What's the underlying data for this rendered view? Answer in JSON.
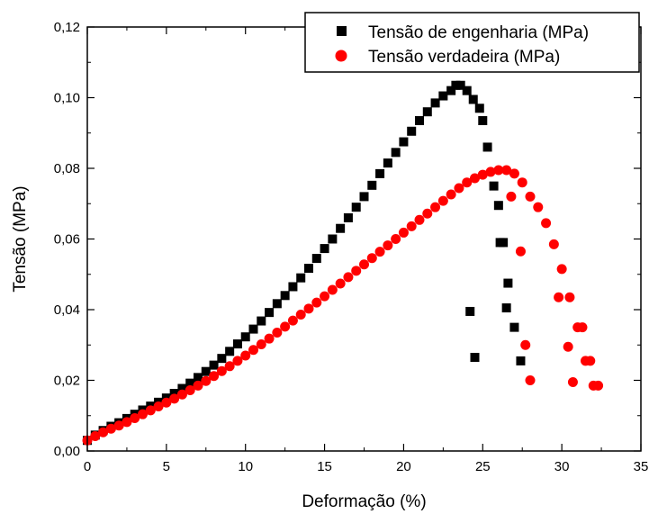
{
  "chart_data": {
    "type": "scatter",
    "xlabel": "Deformação (%)",
    "ylabel": "Tensão (MPa)",
    "xlim": [
      0,
      35
    ],
    "ylim": [
      0,
      0.12
    ],
    "x_ticks": [
      0,
      5,
      10,
      15,
      20,
      25,
      30,
      35
    ],
    "y_ticks": [
      0.0,
      0.02,
      0.04,
      0.06,
      0.08,
      0.1,
      0.12
    ],
    "x_tick_labels": [
      "0",
      "5",
      "10",
      "15",
      "20",
      "25",
      "30",
      "35"
    ],
    "y_tick_labels": [
      "0,00",
      "0,02",
      "0,04",
      "0,06",
      "0,08",
      "0,10",
      "0,12"
    ],
    "grid": false,
    "legend_position": "top-right",
    "series": [
      {
        "name": "Tensão de engenharia (MPa)",
        "marker": "square",
        "color": "#000000",
        "x": [
          0.0,
          0.5,
          1.0,
          1.5,
          2.0,
          2.5,
          3.0,
          3.5,
          4.0,
          4.5,
          5.0,
          5.5,
          6.0,
          6.5,
          7.0,
          7.5,
          8.0,
          8.5,
          9.0,
          9.5,
          10.0,
          10.5,
          11.0,
          11.5,
          12.0,
          12.5,
          13.0,
          13.5,
          14.0,
          14.5,
          15.0,
          15.5,
          16.0,
          16.5,
          17.0,
          17.5,
          18.0,
          18.5,
          19.0,
          19.5,
          20.0,
          20.5,
          21.0,
          21.5,
          22.0,
          22.5,
          23.0,
          23.3,
          23.6,
          24.0,
          24.4,
          24.8,
          25.0,
          25.3,
          25.7,
          26.0,
          26.3,
          26.6,
          27.0,
          27.4,
          26.5,
          26.1,
          24.5,
          24.2
        ],
        "y": [
          0.003,
          0.0045,
          0.0058,
          0.007,
          0.008,
          0.0092,
          0.0104,
          0.0116,
          0.0127,
          0.0138,
          0.015,
          0.0163,
          0.0177,
          0.0192,
          0.0208,
          0.0225,
          0.0243,
          0.0262,
          0.0282,
          0.0303,
          0.0323,
          0.0345,
          0.0368,
          0.0392,
          0.0417,
          0.044,
          0.0465,
          0.049,
          0.0517,
          0.0545,
          0.0573,
          0.06,
          0.063,
          0.066,
          0.069,
          0.072,
          0.0752,
          0.0785,
          0.0815,
          0.0845,
          0.0875,
          0.0905,
          0.0935,
          0.096,
          0.0985,
          0.1005,
          0.102,
          0.1035,
          0.1035,
          0.102,
          0.0995,
          0.097,
          0.0935,
          0.086,
          0.075,
          0.0695,
          0.059,
          0.0475,
          0.035,
          0.0255,
          0.0405,
          0.059,
          0.0265,
          0.0395
        ]
      },
      {
        "name": "Tensão verdadeira (MPa)",
        "marker": "circle",
        "color": "#ff0000",
        "x": [
          0.0,
          0.5,
          1.0,
          1.5,
          2.0,
          2.5,
          3.0,
          3.5,
          4.0,
          4.5,
          5.0,
          5.5,
          6.0,
          6.5,
          7.0,
          7.5,
          8.0,
          8.5,
          9.0,
          9.5,
          10.0,
          10.5,
          11.0,
          11.5,
          12.0,
          12.5,
          13.0,
          13.5,
          14.0,
          14.5,
          15.0,
          15.5,
          16.0,
          16.5,
          17.0,
          17.5,
          18.0,
          18.5,
          19.0,
          19.5,
          20.0,
          20.5,
          21.0,
          21.5,
          22.0,
          22.5,
          23.0,
          23.5,
          24.0,
          24.5,
          25.0,
          25.5,
          26.0,
          26.5,
          27.0,
          27.5,
          28.0,
          28.5,
          29.0,
          29.5,
          30.0,
          30.5,
          31.0,
          31.5,
          32.0,
          29.8,
          30.4,
          31.3,
          31.8,
          32.3,
          27.7,
          28.0,
          30.7,
          27.4,
          26.8
        ],
        "y": [
          0.003,
          0.0042,
          0.0053,
          0.0063,
          0.0072,
          0.0082,
          0.0093,
          0.0104,
          0.0115,
          0.0126,
          0.0137,
          0.0148,
          0.016,
          0.0172,
          0.0185,
          0.0198,
          0.0212,
          0.0226,
          0.024,
          0.0255,
          0.027,
          0.0286,
          0.0302,
          0.0318,
          0.0335,
          0.0352,
          0.0369,
          0.0386,
          0.0403,
          0.042,
          0.0438,
          0.0456,
          0.0474,
          0.0492,
          0.051,
          0.0528,
          0.0546,
          0.0564,
          0.0582,
          0.06,
          0.0618,
          0.0636,
          0.0654,
          0.0672,
          0.069,
          0.0708,
          0.0726,
          0.0744,
          0.076,
          0.0772,
          0.0782,
          0.079,
          0.0795,
          0.0795,
          0.0785,
          0.076,
          0.072,
          0.069,
          0.0645,
          0.0585,
          0.0515,
          0.0435,
          0.035,
          0.0255,
          0.0185,
          0.0435,
          0.0295,
          0.035,
          0.0255,
          0.0185,
          0.03,
          0.02,
          0.0195,
          0.0565,
          0.072
        ]
      }
    ]
  }
}
